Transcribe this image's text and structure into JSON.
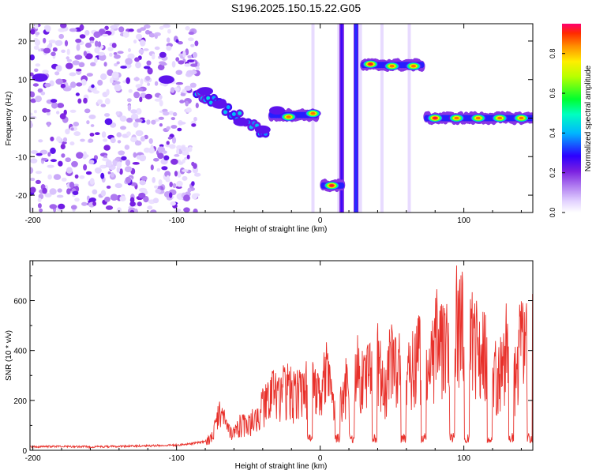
{
  "title": "S196.2025.150.15.22.G05",
  "colors": {
    "snr_line": "#e8302a",
    "colormap": [
      "#ffffff",
      "#d9c6ff",
      "#8a2be2",
      "#2000ff",
      "#00b4ff",
      "#00ff60",
      "#ffee00",
      "#ff8000",
      "#ff0050"
    ]
  },
  "chart_data": [
    {
      "type": "heatmap",
      "title": "S196.2025.150.15.22.G05",
      "xlabel": "Height of straight line (km)",
      "ylabel": "Frequency (Hz)",
      "xlim": [
        -202,
        148
      ],
      "ylim": [
        -24.5,
        24.5
      ],
      "xticks": [
        -200,
        -100,
        0,
        100
      ],
      "yticks": [
        -20,
        -10,
        0,
        10,
        20
      ],
      "colorbar": {
        "label": "Normalized spectral amplitude",
        "range": [
          0,
          0.95
        ],
        "ticks": [
          0.0,
          0.2,
          0.4,
          0.6,
          0.8
        ]
      },
      "features": [
        {
          "desc": "scattered noise",
          "x_range": [
            -202,
            -85
          ],
          "y_range": [
            -24.5,
            24.5
          ]
        },
        {
          "x": -195,
          "y": 10.5,
          "amp": 0.3
        },
        {
          "x": -107,
          "y": 10,
          "amp": 0.3
        },
        {
          "x": -80,
          "y": 7,
          "amp": 0.25
        },
        {
          "x": -70,
          "y": 3.5,
          "amp": 0.2
        },
        {
          "x": -55,
          "y": -1,
          "amp": 0.2
        },
        {
          "x": -40,
          "y": -3,
          "amp": 0.2
        },
        {
          "x": -30,
          "y": 2,
          "amp": 0.25
        },
        {
          "x": -22,
          "y": 0.3,
          "amp": 0.8
        },
        {
          "x": -5,
          "y": 1.2,
          "amp": 0.85
        },
        {
          "x": 8,
          "y": -17.5,
          "amp": 0.9
        },
        {
          "x": 35,
          "y": 14,
          "amp": 0.9
        },
        {
          "x": 50,
          "y": 13.5,
          "amp": 0.85
        },
        {
          "x": 65,
          "y": 13.5,
          "amp": 0.85
        },
        {
          "x": 80,
          "y": 0,
          "amp": 0.9
        },
        {
          "x": 95,
          "y": 0,
          "amp": 0.85
        },
        {
          "x": 110,
          "y": 0,
          "amp": 0.8
        },
        {
          "x": 125,
          "y": 0,
          "amp": 0.8
        },
        {
          "x": 140,
          "y": 0,
          "amp": 0.8
        }
      ]
    },
    {
      "type": "line",
      "xlabel": "Height of straight line (km)",
      "ylabel": "SNR (10 * v/v)",
      "xlim": [
        -202,
        148
      ],
      "ylim": [
        0,
        760
      ],
      "xticks": [
        -200,
        -100,
        0,
        100
      ],
      "yticks": [
        0,
        200,
        400,
        600
      ],
      "series": [
        {
          "x": [
            -202,
            -180,
            -160,
            -140,
            -120,
            -100,
            -90,
            -80,
            -75,
            -70,
            -65,
            -60,
            -55,
            -50,
            -45,
            -40,
            -35,
            -30,
            -25,
            -20,
            -15,
            -10,
            -5,
            0,
            5,
            10,
            15,
            20,
            25,
            30,
            35,
            40,
            45,
            50,
            55,
            60,
            65,
            70,
            75,
            80,
            85,
            90,
            95,
            100,
            105,
            110,
            115,
            120,
            125,
            130,
            135,
            140,
            145,
            148
          ],
          "y": [
            18,
            20,
            18,
            20,
            22,
            25,
            30,
            40,
            80,
            200,
            120,
            90,
            150,
            140,
            180,
            250,
            300,
            280,
            360,
            320,
            300,
            330,
            350,
            300,
            420,
            200,
            260,
            410,
            430,
            380,
            420,
            480,
            300,
            520,
            430,
            380,
            470,
            500,
            360,
            590,
            600,
            520,
            690,
            720,
            600,
            540,
            560,
            420,
            400,
            560,
            360,
            600,
            650,
            620
          ],
          "desc": "dense noisy trace; sharp dips to ~50 near -7, 12, 22, 38, 58, 72, 92, 102, 118, 133, 146"
        }
      ]
    }
  ]
}
